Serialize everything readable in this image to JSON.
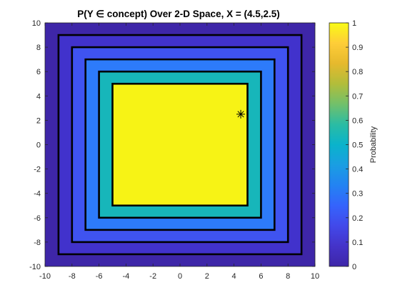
{
  "chart_data": {
    "type": "heatmap",
    "title": "P(Y ∈ concept) Over 2-D Space, X = (4.5,2.5)",
    "xlim": [
      -10,
      10
    ],
    "ylim": [
      -10,
      10
    ],
    "x_ticks": [
      "-10",
      "-8",
      "-6",
      "-4",
      "-2",
      "0",
      "2",
      "4",
      "6",
      "8",
      "10"
    ],
    "y_ticks": [
      "-10",
      "-8",
      "-6",
      "-4",
      "-2",
      "0",
      "2",
      "4",
      "6",
      "8",
      "10"
    ],
    "x_tick_values": [
      -10,
      -8,
      -6,
      -4,
      -2,
      0,
      2,
      4,
      6,
      8,
      10
    ],
    "y_tick_values": [
      -10,
      -8,
      -6,
      -4,
      -2,
      0,
      2,
      4,
      6,
      8,
      10
    ],
    "regions": [
      {
        "half_width": 10,
        "probability": 0.0,
        "color": "#3e26a8"
      },
      {
        "half_width": 9,
        "probability": 0.1,
        "color": "#4132cc"
      },
      {
        "half_width": 8,
        "probability": 0.2,
        "color": "#3f53f0"
      },
      {
        "half_width": 7,
        "probability": 0.3,
        "color": "#2d7bfa"
      },
      {
        "half_width": 6,
        "probability": 0.5,
        "color": "#17b6ba"
      },
      {
        "half_width": 5,
        "probability": 1.0,
        "color": "#f7f315"
      }
    ],
    "contours": [
      9,
      8,
      7,
      6,
      5
    ],
    "marker": {
      "x": 4.5,
      "y": 2.5,
      "symbol": "asterisk"
    },
    "colorbar": {
      "label": "Probability",
      "ticks": [
        "0",
        "0.1",
        "0.2",
        "0.3",
        "0.4",
        "0.5",
        "0.6",
        "0.7",
        "0.8",
        "0.9",
        "1"
      ],
      "tick_values": [
        0,
        0.1,
        0.2,
        0.3,
        0.4,
        0.5,
        0.6,
        0.7,
        0.8,
        0.9,
        1
      ],
      "range": [
        0,
        1
      ],
      "colormap": [
        "#3e26a8",
        "#4433c9",
        "#4249ea",
        "#3564fc",
        "#2383f2",
        "#1a9ee2",
        "#0ab3cb",
        "#2bbca3",
        "#72c06a",
        "#b2bd3a",
        "#e6b92d",
        "#fecd38",
        "#f9fb15"
      ]
    }
  }
}
